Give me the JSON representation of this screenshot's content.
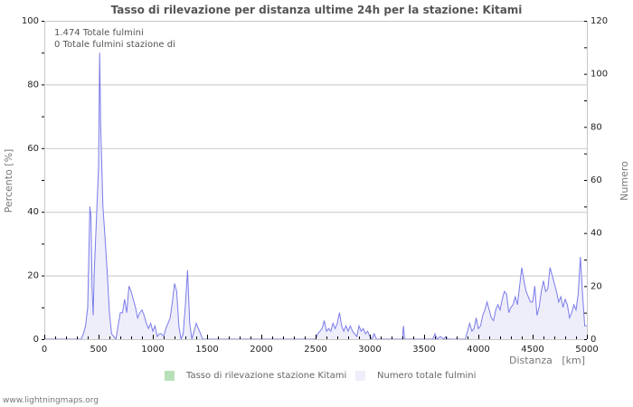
{
  "title": "Tasso di rilevazione per distanza ultime 24h per la stazione: Kitami",
  "info_lines": [
    "1.474 Totale fulmini",
    "0 Totale fulmini stazione di"
  ],
  "footer": "www.lightningmaps.org",
  "legend": [
    {
      "label": "Tasso di rilevazione stazione Kitami",
      "color": "#b8e0b8"
    },
    {
      "label": "Numero totale fulmini",
      "color": "#eeeefc"
    }
  ],
  "colors": {
    "line": "#7b7bea",
    "fill": "#eeeefb",
    "grid": "#c8c8c8",
    "axis": "#c8c8c8"
  },
  "chart_data": {
    "type": "area",
    "title": "Tasso di rilevazione per distanza ultime 24h per la stazione: Kitami",
    "xlabel": "Distanza   [km]",
    "ylabel_left": "Percento   [%]",
    "ylabel_right": "Numero",
    "xlim": [
      0,
      5000
    ],
    "ylim_left": [
      0,
      100
    ],
    "ylim_right": [
      0,
      120
    ],
    "x_ticks": [
      0,
      500,
      1000,
      1500,
      2000,
      2500,
      3000,
      3500,
      4000,
      4500,
      5000
    ],
    "y_left_ticks": [
      0,
      20,
      40,
      60,
      80,
      100
    ],
    "y_right_ticks": [
      0,
      20,
      40,
      60,
      80,
      100,
      120
    ],
    "grid": true,
    "legend_position": "bottom",
    "series": [
      {
        "name": "Tasso di rilevazione stazione Kitami",
        "axis": "left",
        "points": []
      },
      {
        "name": "Numero totale fulmini",
        "axis": "right",
        "points": [
          [
            0,
            0
          ],
          [
            340,
            0
          ],
          [
            360,
            2
          ],
          [
            380,
            5
          ],
          [
            400,
            12
          ],
          [
            420,
            50
          ],
          [
            430,
            46
          ],
          [
            440,
            20
          ],
          [
            450,
            9
          ],
          [
            460,
            25
          ],
          [
            480,
            45
          ],
          [
            500,
            65
          ],
          [
            510,
            108
          ],
          [
            520,
            80
          ],
          [
            540,
            50
          ],
          [
            560,
            38
          ],
          [
            580,
            25
          ],
          [
            600,
            10
          ],
          [
            620,
            2
          ],
          [
            640,
            1
          ],
          [
            660,
            0
          ],
          [
            680,
            5
          ],
          [
            700,
            10
          ],
          [
            720,
            10
          ],
          [
            740,
            15
          ],
          [
            760,
            10
          ],
          [
            780,
            20
          ],
          [
            800,
            18
          ],
          [
            820,
            15
          ],
          [
            840,
            12
          ],
          [
            860,
            8
          ],
          [
            880,
            10
          ],
          [
            900,
            11
          ],
          [
            920,
            9
          ],
          [
            940,
            6
          ],
          [
            960,
            4
          ],
          [
            980,
            6
          ],
          [
            1000,
            3
          ],
          [
            1020,
            5
          ],
          [
            1040,
            1
          ],
          [
            1060,
            2
          ],
          [
            1080,
            2
          ],
          [
            1100,
            1
          ],
          [
            1120,
            4
          ],
          [
            1140,
            6
          ],
          [
            1160,
            8
          ],
          [
            1180,
            14
          ],
          [
            1200,
            21
          ],
          [
            1220,
            18
          ],
          [
            1240,
            5
          ],
          [
            1260,
            0
          ],
          [
            1280,
            2
          ],
          [
            1300,
            13
          ],
          [
            1320,
            26
          ],
          [
            1340,
            6
          ],
          [
            1360,
            0
          ],
          [
            1380,
            3
          ],
          [
            1400,
            6
          ],
          [
            1420,
            4
          ],
          [
            1440,
            2
          ],
          [
            1460,
            0
          ],
          [
            2500,
            0
          ],
          [
            2520,
            2
          ],
          [
            2560,
            4
          ],
          [
            2580,
            7
          ],
          [
            2600,
            3
          ],
          [
            2620,
            4
          ],
          [
            2640,
            3
          ],
          [
            2660,
            6
          ],
          [
            2680,
            4
          ],
          [
            2700,
            6
          ],
          [
            2720,
            10
          ],
          [
            2740,
            5
          ],
          [
            2760,
            3
          ],
          [
            2780,
            5
          ],
          [
            2800,
            3
          ],
          [
            2820,
            5
          ],
          [
            2840,
            3
          ],
          [
            2860,
            2
          ],
          [
            2880,
            1
          ],
          [
            2900,
            5
          ],
          [
            2920,
            3
          ],
          [
            2940,
            4
          ],
          [
            2960,
            2
          ],
          [
            2980,
            3
          ],
          [
            3000,
            1
          ],
          [
            3020,
            0
          ],
          [
            3040,
            2
          ],
          [
            3060,
            0
          ],
          [
            3300,
            0
          ],
          [
            3310,
            5
          ],
          [
            3320,
            0
          ],
          [
            3580,
            0
          ],
          [
            3600,
            2
          ],
          [
            3620,
            0
          ],
          [
            3650,
            1
          ],
          [
            3680,
            0
          ],
          [
            3700,
            1
          ],
          [
            3720,
            0
          ],
          [
            3880,
            0
          ],
          [
            3900,
            3
          ],
          [
            3920,
            6
          ],
          [
            3940,
            3
          ],
          [
            3960,
            4
          ],
          [
            3980,
            8
          ],
          [
            4000,
            4
          ],
          [
            4020,
            5
          ],
          [
            4040,
            9
          ],
          [
            4060,
            11
          ],
          [
            4080,
            14
          ],
          [
            4100,
            11
          ],
          [
            4120,
            8
          ],
          [
            4140,
            7
          ],
          [
            4160,
            11
          ],
          [
            4180,
            13
          ],
          [
            4200,
            11
          ],
          [
            4220,
            15
          ],
          [
            4240,
            18
          ],
          [
            4260,
            17
          ],
          [
            4280,
            10
          ],
          [
            4300,
            12
          ],
          [
            4320,
            13
          ],
          [
            4340,
            16
          ],
          [
            4360,
            13
          ],
          [
            4380,
            20
          ],
          [
            4400,
            27
          ],
          [
            4420,
            22
          ],
          [
            4440,
            18
          ],
          [
            4460,
            16
          ],
          [
            4480,
            14
          ],
          [
            4500,
            14
          ],
          [
            4520,
            20
          ],
          [
            4540,
            9
          ],
          [
            4560,
            12
          ],
          [
            4580,
            18
          ],
          [
            4600,
            22
          ],
          [
            4620,
            18
          ],
          [
            4640,
            19
          ],
          [
            4660,
            27
          ],
          [
            4680,
            24
          ],
          [
            4700,
            21
          ],
          [
            4720,
            18
          ],
          [
            4740,
            14
          ],
          [
            4760,
            16
          ],
          [
            4780,
            12
          ],
          [
            4800,
            15
          ],
          [
            4820,
            13
          ],
          [
            4840,
            8
          ],
          [
            4860,
            10
          ],
          [
            4880,
            13
          ],
          [
            4900,
            11
          ],
          [
            4920,
            17
          ],
          [
            4940,
            31
          ],
          [
            4960,
            17
          ],
          [
            4980,
            5
          ],
          [
            5000,
            5
          ]
        ]
      }
    ]
  }
}
